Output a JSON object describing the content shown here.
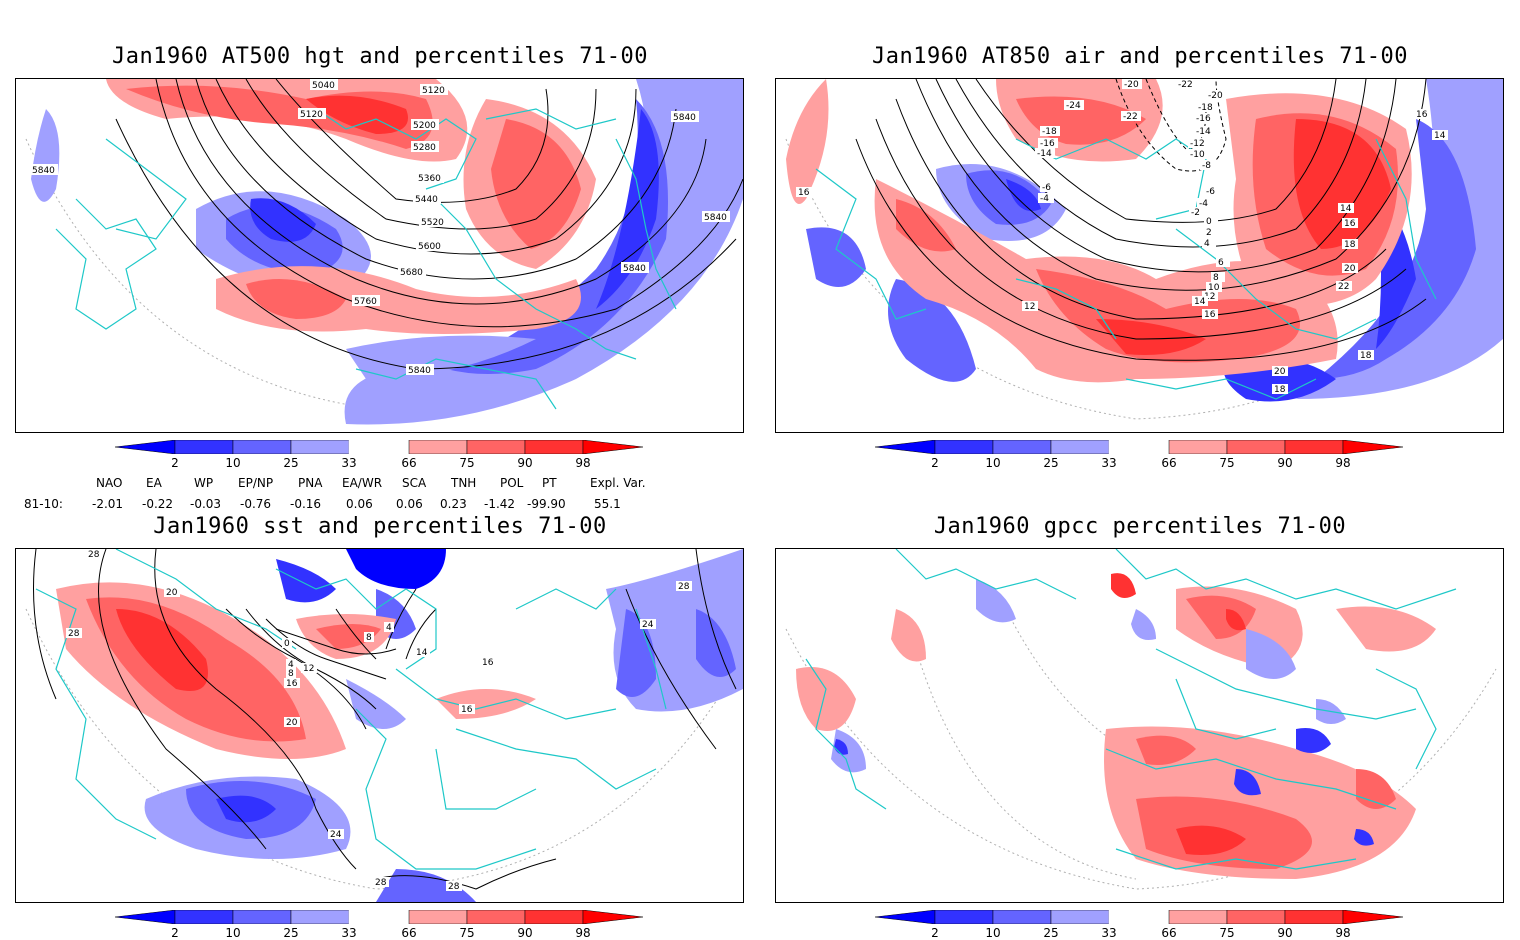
{
  "panels": [
    {
      "title": "Jan1960 AT500 hgt and percentiles 71-00"
    },
    {
      "title": "Jan1960 AT850 air and percentiles 71-00"
    },
    {
      "title": "Jan1960 sst and percentiles 71-00"
    },
    {
      "title": "Jan1960 gpcc percentiles 71-00"
    }
  ],
  "colorbar": {
    "ticks": [
      "2",
      "10",
      "25",
      "33",
      "66",
      "75",
      "90",
      "98"
    ],
    "colors": [
      "#0000ff",
      "#3232ff",
      "#6464ff",
      "#a0a0ff",
      "#ffffff",
      "#ffa0a0",
      "#ff6464",
      "#ff3232",
      "#ff0000"
    ]
  },
  "indices": {
    "row_label": "81-10:",
    "headers": [
      "NAO",
      "EA",
      "WP",
      "EP/NP",
      "PNA",
      "EA/WR",
      "SCA",
      "TNH",
      "POL",
      "PT",
      "Expl. Var."
    ],
    "values": [
      "-2.01",
      "-0.22",
      "-0.03",
      "-0.76",
      "-0.16",
      "0.06",
      "0.06",
      "0.23",
      "-1.42",
      "-99.90",
      "55.1"
    ]
  },
  "contour_labels": {
    "hgt": [
      "5040",
      "5120",
      "5120",
      "5200",
      "5280",
      "5360",
      "5440",
      "5520",
      "5600",
      "5680",
      "5760",
      "5840",
      "5840",
      "5840",
      "5840",
      "5840"
    ],
    "air": [
      "-20",
      "-22",
      "-24",
      "-20",
      "-18",
      "-16",
      "-18",
      "-16",
      "-14",
      "-22",
      "-14",
      "-12",
      "-10",
      "-8",
      "-6",
      "-4",
      "-6",
      "-4",
      "-2",
      "0",
      "2",
      "4",
      "6",
      "8",
      "10",
      "12",
      "14",
      "16",
      "12",
      "14",
      "16",
      "18",
      "20",
      "22",
      "16",
      "14",
      "16",
      "18",
      "20",
      "18"
    ],
    "sst": [
      "28",
      "20",
      "28",
      "0",
      "4",
      "8",
      "12",
      "16",
      "20",
      "24",
      "28",
      "28",
      "24",
      "28",
      "8",
      "4",
      "16",
      "14",
      "16"
    ]
  }
}
